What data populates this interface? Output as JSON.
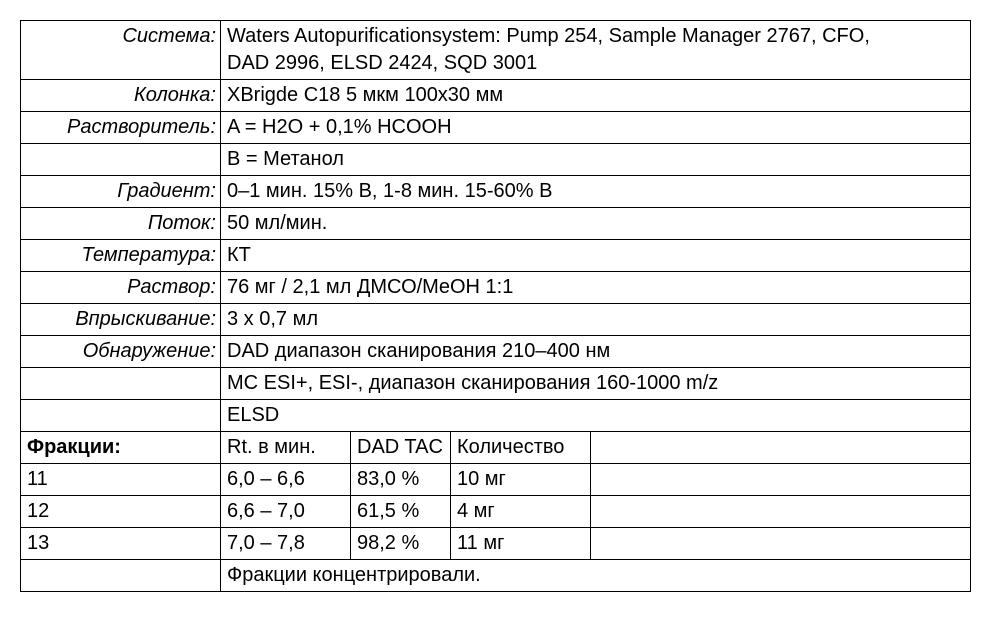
{
  "params": {
    "system_label": "Система:",
    "system_value": "Waters Autopurificationsystem: Pump 254, Sample Manager 2767, CFO,\nDAD 2996, ELSD 2424, SQD 3001",
    "column_label": "Колонка:",
    "column_value": "XBrigde C18 5 мкм 100x30 мм",
    "solvent_label": "Растворитель:",
    "solvent_a": "A = H2O + 0,1% HCOOH",
    "solvent_b": "B = Метанол",
    "gradient_label": "Градиент:",
    "gradient_value": "0–1 мин. 15% B, 1-8 мин. 15-60% B",
    "flow_label": "Поток:",
    "flow_value": "50 мл/мин.",
    "temp_label": "Температура:",
    "temp_value": "КТ",
    "solution_label": "Раствор:",
    "solution_value": "76 мг / 2,1 мл ДМСО/MeOH 1:1",
    "injection_label": "Впрыскивание:",
    "injection_value": "3 x 0,7 мл",
    "detection_label": "Обнаружение:",
    "detection_dad": "DAD диапазон сканирования 210–400 нм",
    "detection_ms": "МС ESI+, ESI-, диапазон сканирования 160-1000 m/z",
    "detection_elsd": "ELSD"
  },
  "fractions": {
    "header_label": "Фракции:",
    "col_rt": "Rt. в мин.",
    "col_dad": "DAD TAC",
    "col_qty": "Количество",
    "rows": [
      {
        "id": "11",
        "rt": "6,0 – 6,6",
        "dad": "83,0 %",
        "qty": "10 мг"
      },
      {
        "id": "12",
        "rt": "6,6 – 7,0",
        "dad": "61,5 %",
        "qty": "4 мг"
      },
      {
        "id": "13",
        "rt": "7,0 – 7,8",
        "dad": "98,2 %",
        "qty": "11 мг"
      }
    ],
    "footer": "Фракции концентрировали."
  }
}
